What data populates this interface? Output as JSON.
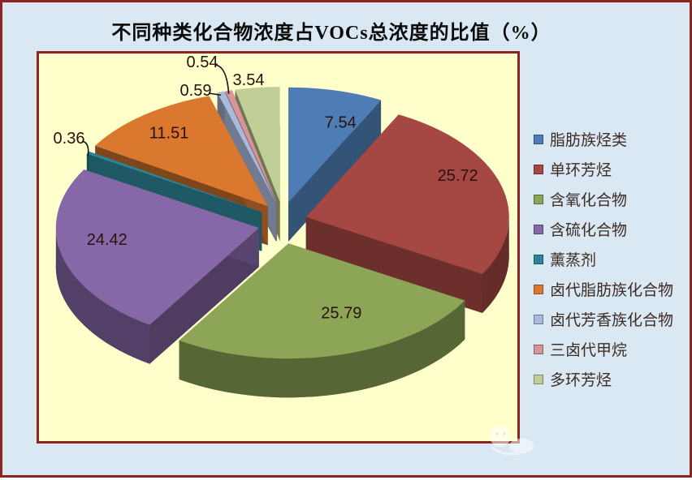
{
  "title": "不同种类化合物浓度占VOCs总浓度的比值（%）",
  "colors": {
    "page_background": "#D9E8F2",
    "plot_background": "#FFFFCC",
    "frame_border": "#8B2423",
    "title_text": "#0A0A0A",
    "legend_text": "#3D2B26",
    "data_label_text": "#2B100C",
    "leader_line": "#111111"
  },
  "chart_data": {
    "type": "pie",
    "style": "3d-exploded",
    "title": "不同种类化合物浓度占VOCs总浓度的比值（%）",
    "unit": "%",
    "legend_position": "right",
    "direction": "clockwise",
    "start_angle_deg": 0,
    "categories": [
      "脂肪族烃类",
      "单环芳烃",
      "含氧化合物",
      "含硫化合物",
      "薰蒸剂",
      "卤代脂肪族化合物",
      "卤代芳香族化合物",
      "三卤代甲烷",
      "多环芳烃"
    ],
    "values": [
      7.54,
      25.72,
      25.79,
      24.42,
      0.36,
      11.51,
      0.59,
      0.54,
      3.54
    ],
    "colors": [
      "#4E7DB5",
      "#A54743",
      "#8CA556",
      "#8668A8",
      "#2E8597",
      "#D9782E",
      "#A9BADC",
      "#D89597",
      "#BFCE96"
    ]
  }
}
